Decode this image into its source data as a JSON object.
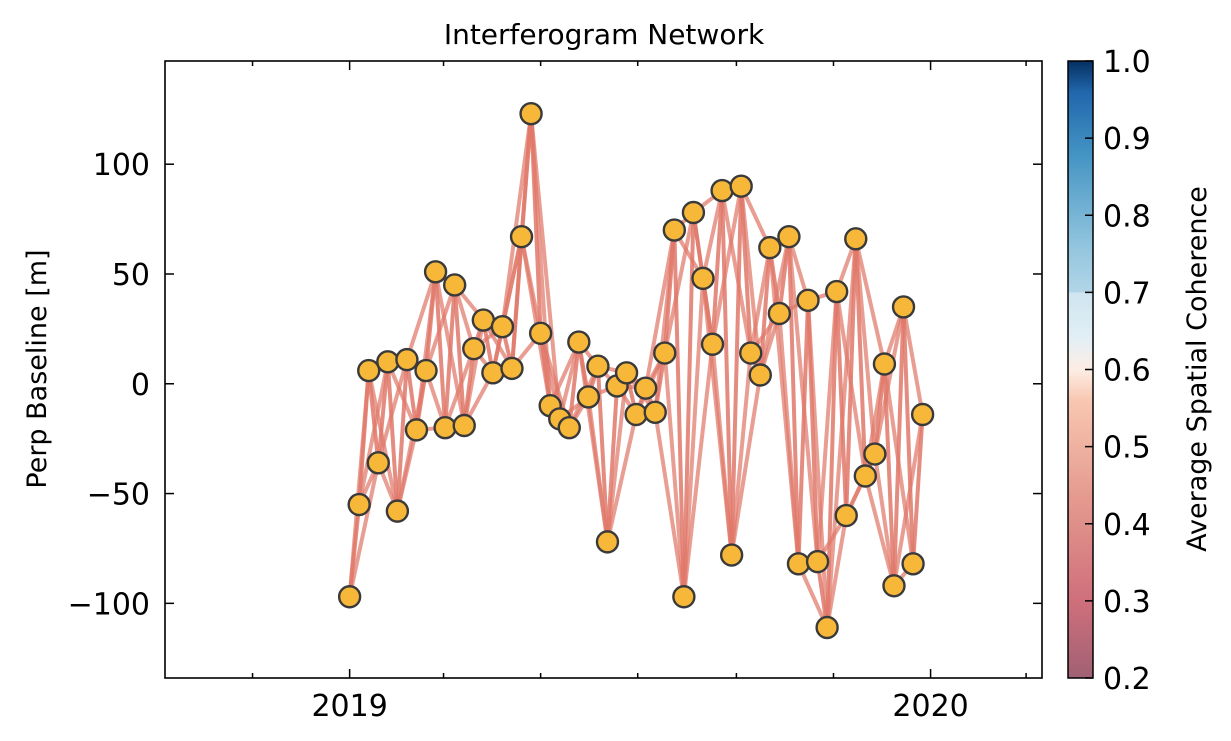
{
  "chart_data": {
    "type": "scatter",
    "title": "Interferogram Network",
    "xlabel": "",
    "ylabel": "Perp Baseline [m]",
    "xlim": [
      "2018-09-07",
      "2020-03-11"
    ],
    "ylim": [
      -134,
      147
    ],
    "xticks": [
      {
        "date": "2019-01-01",
        "label": "2019"
      },
      {
        "date": "2020-01-01",
        "label": "2020"
      }
    ],
    "yticks": [
      -100,
      -50,
      0,
      50,
      100
    ],
    "marker_fill": "#f7b83a",
    "marker_edge": "#3a3a3a",
    "edge_color": "#e0786a",
    "points": [
      {
        "date": "2019-01-01",
        "bperp": -97
      },
      {
        "date": "2019-01-07",
        "bperp": -55
      },
      {
        "date": "2019-01-13",
        "bperp": 6
      },
      {
        "date": "2019-01-19",
        "bperp": -36
      },
      {
        "date": "2019-01-25",
        "bperp": 10
      },
      {
        "date": "2019-01-31",
        "bperp": -58
      },
      {
        "date": "2019-02-06",
        "bperp": 11
      },
      {
        "date": "2019-02-12",
        "bperp": -21
      },
      {
        "date": "2019-02-18",
        "bperp": 6
      },
      {
        "date": "2019-02-24",
        "bperp": 51
      },
      {
        "date": "2019-03-02",
        "bperp": -20
      },
      {
        "date": "2019-03-08",
        "bperp": 45
      },
      {
        "date": "2019-03-14",
        "bperp": -19
      },
      {
        "date": "2019-03-20",
        "bperp": 16
      },
      {
        "date": "2019-03-26",
        "bperp": 29
      },
      {
        "date": "2019-04-01",
        "bperp": 5
      },
      {
        "date": "2019-04-07",
        "bperp": 26
      },
      {
        "date": "2019-04-13",
        "bperp": 7
      },
      {
        "date": "2019-04-19",
        "bperp": 67
      },
      {
        "date": "2019-04-25",
        "bperp": 123
      },
      {
        "date": "2019-05-01",
        "bperp": 23
      },
      {
        "date": "2019-05-07",
        "bperp": -10
      },
      {
        "date": "2019-05-13",
        "bperp": -16
      },
      {
        "date": "2019-05-19",
        "bperp": -20
      },
      {
        "date": "2019-05-25",
        "bperp": 19
      },
      {
        "date": "2019-05-31",
        "bperp": -6
      },
      {
        "date": "2019-06-06",
        "bperp": 8
      },
      {
        "date": "2019-06-12",
        "bperp": -72
      },
      {
        "date": "2019-06-18",
        "bperp": -1
      },
      {
        "date": "2019-06-24",
        "bperp": 5
      },
      {
        "date": "2019-06-30",
        "bperp": -14
      },
      {
        "date": "2019-07-06",
        "bperp": -2
      },
      {
        "date": "2019-07-12",
        "bperp": -13
      },
      {
        "date": "2019-07-18",
        "bperp": 14
      },
      {
        "date": "2019-07-24",
        "bperp": 70
      },
      {
        "date": "2019-07-30",
        "bperp": -97
      },
      {
        "date": "2019-08-05",
        "bperp": 78
      },
      {
        "date": "2019-08-11",
        "bperp": 48
      },
      {
        "date": "2019-08-17",
        "bperp": 18
      },
      {
        "date": "2019-08-23",
        "bperp": 88
      },
      {
        "date": "2019-08-29",
        "bperp": -78
      },
      {
        "date": "2019-09-04",
        "bperp": 90
      },
      {
        "date": "2019-09-10",
        "bperp": 14
      },
      {
        "date": "2019-09-16",
        "bperp": 4
      },
      {
        "date": "2019-09-22",
        "bperp": 62
      },
      {
        "date": "2019-09-28",
        "bperp": 32
      },
      {
        "date": "2019-10-04",
        "bperp": 67
      },
      {
        "date": "2019-10-10",
        "bperp": -82
      },
      {
        "date": "2019-10-16",
        "bperp": 38
      },
      {
        "date": "2019-10-22",
        "bperp": -81
      },
      {
        "date": "2019-10-28",
        "bperp": -111
      },
      {
        "date": "2019-11-03",
        "bperp": 42
      },
      {
        "date": "2019-11-09",
        "bperp": -60
      },
      {
        "date": "2019-11-15",
        "bperp": 66
      },
      {
        "date": "2019-11-21",
        "bperp": -42
      },
      {
        "date": "2019-11-27",
        "bperp": -32
      },
      {
        "date": "2019-12-03",
        "bperp": 9
      },
      {
        "date": "2019-12-09",
        "bperp": -92
      },
      {
        "date": "2019-12-15",
        "bperp": 35
      },
      {
        "date": "2019-12-21",
        "bperp": -82
      },
      {
        "date": "2019-12-27",
        "bperp": -14
      }
    ],
    "connections": [
      1,
      2,
      3
    ],
    "colorbar": {
      "label": "Average Spatial Coherence",
      "min": 0.2,
      "max": 1.0,
      "ticks": [
        "0.2",
        "0.3",
        "0.4",
        "0.5",
        "0.6",
        "0.7",
        "0.8",
        "0.9",
        "1.0"
      ],
      "colormap": "RdBu",
      "greyed_above": 0.7
    }
  }
}
